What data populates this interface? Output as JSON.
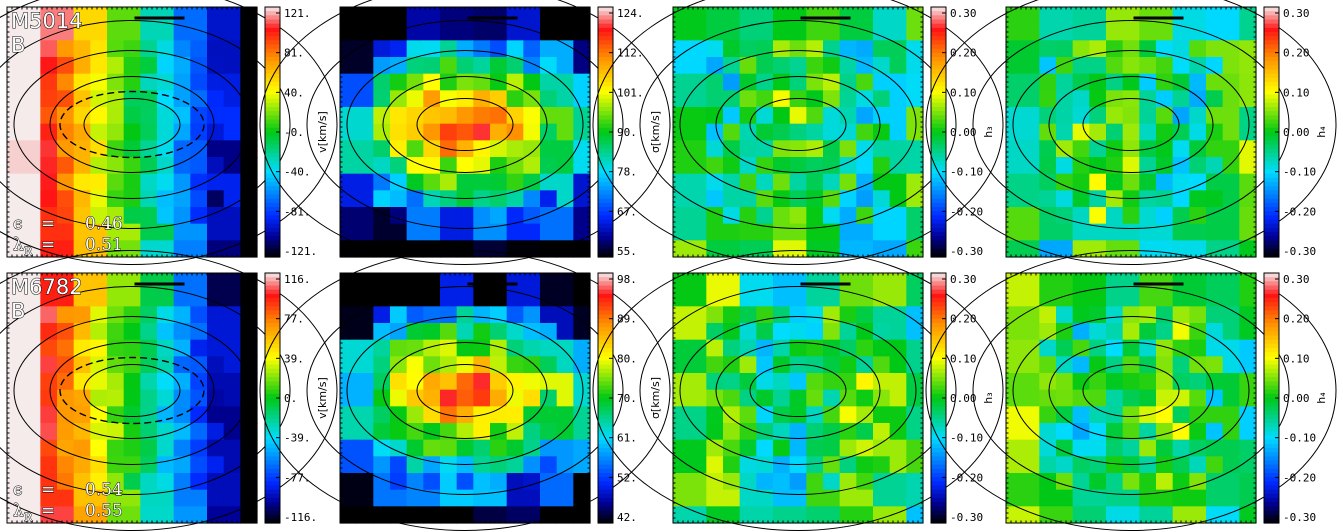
{
  "rows": [
    {
      "galaxy": "M5014",
      "band": "B",
      "stats": [
        {
          "symbol": "ϵ",
          "sub": "",
          "eq": "=",
          "value": "0.46"
        },
        {
          "symbol": "λ",
          "sub": "R",
          "eq": "=",
          "value": "0.51"
        }
      ],
      "panels": [
        {
          "kind": "v",
          "unit": "v[km/s]",
          "cmap": "rainbow",
          "ticks": [
            "121.",
            "81.",
            "40.",
            "-0.",
            "-40.",
            "-81.",
            "-121."
          ],
          "dashed": true
        },
        {
          "kind": "sigma",
          "unit": "σ[km/s]",
          "cmap": "rainbow",
          "ticks": [
            "124.",
            "112.",
            "101.",
            "90.",
            "78.",
            "67.",
            "55."
          ],
          "dashed": false
        },
        {
          "kind": "h3",
          "unit": "h₃",
          "cmap": "rainbow",
          "ticks": [
            "0.30",
            "0.20",
            "0.10",
            "0.00",
            "-0.10",
            "-0.20",
            "-0.30"
          ],
          "dashed": false
        },
        {
          "kind": "h4",
          "unit": "h₄",
          "cmap": "rainbow",
          "ticks": [
            "0.30",
            "0.20",
            "0.10",
            "0.00",
            "-0.10",
            "-0.20",
            "-0.30"
          ],
          "dashed": false
        }
      ]
    },
    {
      "galaxy": "M6782",
      "band": "B",
      "stats": [
        {
          "symbol": "ϵ",
          "sub": "",
          "eq": "=",
          "value": "0.54"
        },
        {
          "symbol": "λ",
          "sub": "R",
          "eq": "=",
          "value": "0.55"
        }
      ],
      "panels": [
        {
          "kind": "v",
          "unit": "v[km/s]",
          "cmap": "rainbow",
          "ticks": [
            "116.",
            "77.",
            "39.",
            "0.",
            "-39.",
            "-77.",
            "-116."
          ],
          "dashed": true
        },
        {
          "kind": "sigma",
          "unit": "σ[km/s]",
          "cmap": "rainbow",
          "ticks": [
            "98.",
            "89.",
            "80.",
            "70.",
            "61.",
            "52.",
            "42."
          ],
          "dashed": false
        },
        {
          "kind": "h3",
          "unit": "h₃",
          "cmap": "rainbow",
          "ticks": [
            "0.30",
            "0.20",
            "0.10",
            "0.00",
            "-0.10",
            "-0.20",
            "-0.30"
          ],
          "dashed": false
        },
        {
          "kind": "h4",
          "unit": "h₄",
          "cmap": "rainbow",
          "ticks": [
            "0.30",
            "0.20",
            "0.10",
            "0.00",
            "-0.10",
            "-0.20",
            "-0.30"
          ],
          "dashed": false
        }
      ]
    }
  ]
}
